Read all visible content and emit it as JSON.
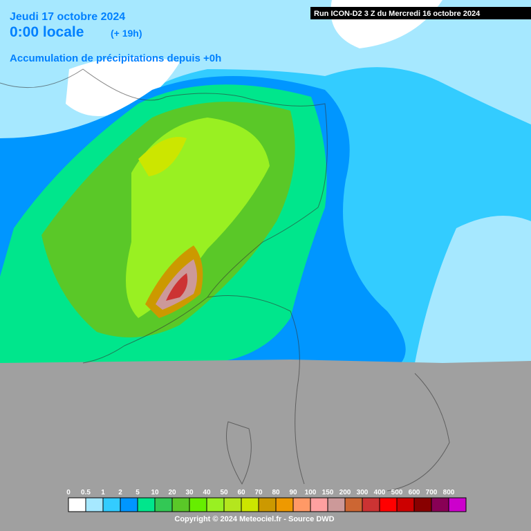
{
  "header": {
    "date": "Jeudi 17 octobre 2024",
    "time": "0:00 locale",
    "lead": "(+ 19h)",
    "subtitle": "Accumulation de précipitations depuis +0h",
    "run": "Run ICON-D2 3 Z du Mercredi 16 octobre 2024"
  },
  "legend": {
    "labels": [
      0,
      0.5,
      1,
      2,
      5,
      10,
      20,
      30,
      40,
      50,
      60,
      70,
      80,
      90,
      100,
      150,
      200,
      300,
      400,
      500,
      600,
      700,
      800
    ],
    "colors": [
      "#ffffff",
      "#a6e8ff",
      "#33ccff",
      "#0096ff",
      "#00e68c",
      "#33c855",
      "#5ac828",
      "#66ee00",
      "#99f022",
      "#b4e61e",
      "#cce600",
      "#cc9900",
      "#ee9900",
      "#ff9966",
      "#ffa0a0",
      "#cc9999",
      "#cc6633",
      "#cc3333",
      "#ff0000",
      "#cc0000",
      "#880000",
      "#880055",
      "#cc00cc"
    ]
  },
  "footer": {
    "copyright": "Copyright © 2024 Meteociel.fr - Source DWD"
  }
}
